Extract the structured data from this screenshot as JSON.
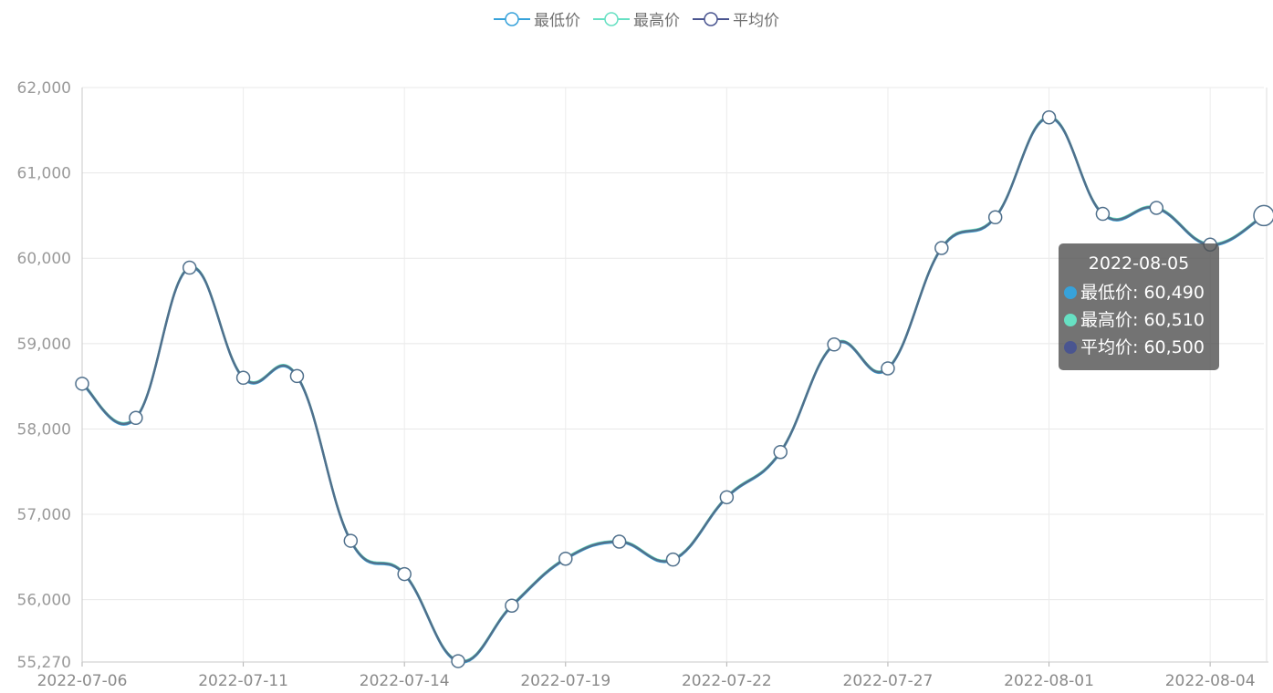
{
  "legend": [
    {
      "name": "最低价",
      "color": "#37a2da"
    },
    {
      "name": "最高价",
      "color": "#67e0c3"
    },
    {
      "name": "平均价",
      "color": "#4a5590"
    }
  ],
  "tooltip": {
    "title": "2022-08-05",
    "rows": [
      {
        "label": "最低价: 60,490",
        "color": "#37a2da"
      },
      {
        "label": "最高价: 60,510",
        "color": "#67e0c3"
      },
      {
        "label": "平均价: 60,500",
        "color": "#4a5590"
      }
    ]
  },
  "chart_data": {
    "type": "line",
    "smooth": true,
    "title": "",
    "xlabel": "",
    "ylabel": "",
    "x": [
      "2022-07-06",
      "2022-07-07",
      "2022-07-08",
      "2022-07-11",
      "2022-07-12",
      "2022-07-13",
      "2022-07-14",
      "2022-07-15",
      "2022-07-18",
      "2022-07-19",
      "2022-07-20",
      "2022-07-21",
      "2022-07-22",
      "2022-07-25",
      "2022-07-26",
      "2022-07-27",
      "2022-07-28",
      "2022-07-29",
      "2022-08-01",
      "2022-08-02",
      "2022-08-03",
      "2022-08-04",
      "2022-08-05"
    ],
    "x_tick_labels": [
      "2022-07-06",
      "2022-07-11",
      "2022-07-14",
      "2022-07-19",
      "2022-07-22",
      "2022-07-27",
      "2022-08-01",
      "2022-08-04"
    ],
    "y_ticks": [
      55270,
      56000,
      57000,
      58000,
      59000,
      60000,
      61000,
      62000
    ],
    "y_tick_labels": [
      "55,270",
      "56,000",
      "57,000",
      "58,000",
      "59,000",
      "60,000",
      "61,000",
      "62,000"
    ],
    "ylim": [
      55270,
      62000
    ],
    "grid": true,
    "legend_position": "top-center",
    "series": [
      {
        "name": "最低价",
        "color": "#37a2da",
        "values": [
          58520,
          58120,
          59880,
          58590,
          58610,
          56680,
          56290,
          55270,
          55920,
          56470,
          56670,
          56460,
          57190,
          57720,
          58980,
          58700,
          60110,
          60470,
          61640,
          60510,
          60580,
          60150,
          60490
        ]
      },
      {
        "name": "最高价",
        "color": "#67e0c3",
        "values": [
          58540,
          58140,
          59900,
          58610,
          58630,
          56700,
          56310,
          55290,
          55940,
          56490,
          56690,
          56480,
          57210,
          57740,
          59000,
          58720,
          60130,
          60490,
          61660,
          60530,
          60600,
          60170,
          60510
        ]
      },
      {
        "name": "平均价",
        "color": "#4a5590",
        "values": [
          58530,
          58130,
          59890,
          58600,
          58620,
          56690,
          56300,
          55280,
          55930,
          56480,
          56680,
          56470,
          57200,
          57730,
          58990,
          58710,
          60120,
          60480,
          61650,
          60520,
          60590,
          60160,
          60500
        ]
      }
    ]
  }
}
